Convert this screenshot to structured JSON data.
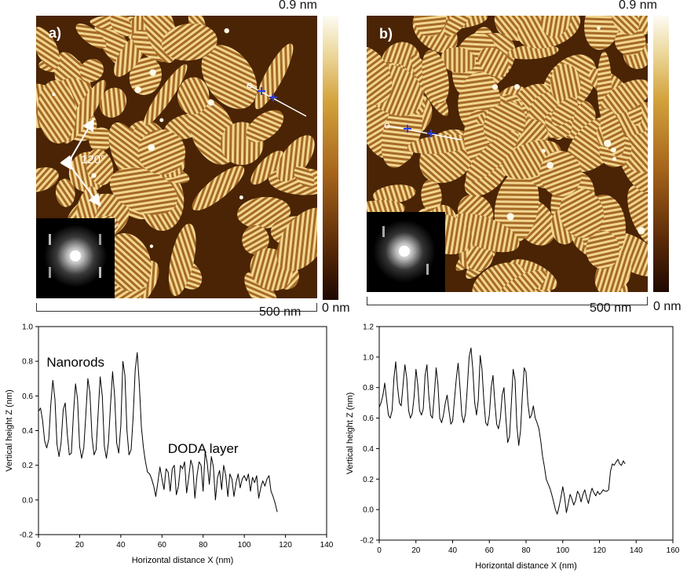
{
  "images": [
    {
      "panel_label": "a)",
      "colorbar_max": "0.9 nm",
      "colorbar_min": "0 nm",
      "scale_label": "500 nm",
      "angle_label": "120°"
    },
    {
      "panel_label": "b)",
      "colorbar_max": "0.9 nm",
      "colorbar_min": "0 nm",
      "scale_label": "500 nm"
    }
  ],
  "colors": {
    "afm_dark": "#4a2405",
    "afm_light": "#f2d690",
    "profile_marker": "#2b3fe0",
    "line": "#000000"
  },
  "chart_data": [
    {
      "type": "line",
      "title": "",
      "xlabel": "Horizontal distance X (nm)",
      "ylabel": "Vertical height Z (nm)",
      "xlim": [
        0,
        140
      ],
      "ylim": [
        -0.2,
        1.0
      ],
      "xticks": [
        0,
        20,
        40,
        60,
        80,
        100,
        120,
        140
      ],
      "yticks": [
        -0.2,
        0.0,
        0.2,
        0.4,
        0.6,
        0.8,
        1.0
      ],
      "annotations": [
        {
          "text": "Nanorods",
          "x": 18,
          "y": 0.77
        },
        {
          "text": "DODA layer",
          "x": 80,
          "y": 0.27
        }
      ],
      "series": [
        {
          "x": [
            0,
            1,
            2,
            3,
            4,
            5,
            6,
            7,
            8,
            9,
            10,
            11,
            12,
            13,
            14,
            15,
            16,
            17,
            18,
            19,
            20,
            21,
            22,
            23,
            24,
            25,
            26,
            27,
            28,
            29,
            30,
            31,
            32,
            33,
            34,
            35,
            36,
            37,
            38,
            39,
            40,
            41,
            42,
            43,
            44,
            45,
            46,
            47,
            48,
            49,
            50,
            51,
            52,
            53,
            54,
            55,
            56,
            57,
            58,
            59,
            60,
            61,
            62,
            63,
            64,
            65,
            66,
            67,
            68,
            69,
            70,
            71,
            72,
            73,
            74,
            75,
            76,
            77,
            78,
            79,
            80,
            81,
            82,
            83,
            84,
            85,
            86,
            87,
            88,
            89,
            90,
            91,
            92,
            93,
            94,
            95,
            96,
            97,
            98,
            99,
            100,
            101,
            102,
            103,
            104,
            105,
            106,
            107,
            108,
            109,
            110,
            111,
            112,
            113,
            114,
            115,
            116
          ],
          "y": [
            0.51,
            0.53,
            0.46,
            0.34,
            0.3,
            0.35,
            0.55,
            0.69,
            0.58,
            0.32,
            0.25,
            0.33,
            0.52,
            0.56,
            0.38,
            0.26,
            0.27,
            0.5,
            0.67,
            0.58,
            0.31,
            0.24,
            0.3,
            0.49,
            0.7,
            0.62,
            0.36,
            0.26,
            0.29,
            0.5,
            0.71,
            0.6,
            0.31,
            0.24,
            0.33,
            0.55,
            0.74,
            0.6,
            0.33,
            0.27,
            0.43,
            0.8,
            0.72,
            0.4,
            0.26,
            0.29,
            0.48,
            0.75,
            0.85,
            0.67,
            0.42,
            0.3,
            0.22,
            0.16,
            0.15,
            0.12,
            0.08,
            0.02,
            0.1,
            0.19,
            0.12,
            0.06,
            0.18,
            0.16,
            0.05,
            0.18,
            0.2,
            0.03,
            0.08,
            0.2,
            0.18,
            0.22,
            0.04,
            0.13,
            0.23,
            0.19,
            0.01,
            0.14,
            0.22,
            0.2,
            0.05,
            0.28,
            0.21,
            0.09,
            0.25,
            0.19,
            0.0,
            0.13,
            0.17,
            0.06,
            0.2,
            0.14,
            0.02,
            0.15,
            0.12,
            0.02,
            0.1,
            0.15,
            0.07,
            0.12,
            0.14,
            0.11,
            0.15,
            0.05,
            0.13,
            0.1,
            0.14,
            0.01,
            0.07,
            0.11,
            0.08,
            0.12,
            0.14,
            0.05,
            0.02,
            -0.02,
            -0.07
          ]
        }
      ]
    },
    {
      "type": "line",
      "title": "",
      "xlabel": "Horizontal distance X (nm)",
      "ylabel": "Vertical height Z (nm)",
      "xlim": [
        0,
        160
      ],
      "ylim": [
        -0.2,
        1.2
      ],
      "xticks": [
        0,
        20,
        40,
        60,
        80,
        100,
        120,
        140,
        160
      ],
      "yticks": [
        -0.2,
        0.0,
        0.2,
        0.4,
        0.6,
        0.8,
        1.0,
        1.2
      ],
      "series": [
        {
          "x": [
            0,
            1,
            2,
            3,
            4,
            5,
            6,
            7,
            8,
            9,
            10,
            11,
            12,
            13,
            14,
            15,
            16,
            17,
            18,
            19,
            20,
            21,
            22,
            23,
            24,
            25,
            26,
            27,
            28,
            29,
            30,
            31,
            32,
            33,
            34,
            35,
            36,
            37,
            38,
            39,
            40,
            41,
            42,
            43,
            44,
            45,
            46,
            47,
            48,
            49,
            50,
            51,
            52,
            53,
            54,
            55,
            56,
            57,
            58,
            59,
            60,
            61,
            62,
            63,
            64,
            65,
            66,
            67,
            68,
            69,
            70,
            71,
            72,
            73,
            74,
            75,
            76,
            77,
            78,
            79,
            80,
            81,
            82,
            83,
            84,
            85,
            86,
            87,
            88,
            89,
            90,
            91,
            92,
            93,
            94,
            95,
            96,
            97,
            98,
            99,
            100,
            101,
            102,
            103,
            104,
            105,
            106,
            107,
            108,
            109,
            110,
            111,
            112,
            113,
            114,
            115,
            116,
            117,
            118,
            119,
            120,
            121,
            122,
            123,
            124,
            125,
            126,
            127,
            128,
            129,
            130,
            131,
            132,
            133,
            134
          ],
          "y": [
            0.67,
            0.7,
            0.75,
            0.83,
            0.72,
            0.62,
            0.6,
            0.65,
            0.86,
            0.97,
            0.8,
            0.7,
            0.68,
            0.82,
            0.95,
            0.86,
            0.65,
            0.6,
            0.63,
            0.74,
            0.92,
            0.82,
            0.65,
            0.62,
            0.66,
            0.88,
            0.95,
            0.75,
            0.62,
            0.6,
            0.75,
            0.93,
            0.82,
            0.6,
            0.57,
            0.62,
            0.7,
            0.75,
            0.65,
            0.56,
            0.58,
            0.72,
            0.86,
            0.96,
            0.8,
            0.62,
            0.57,
            0.63,
            0.8,
            1.0,
            1.06,
            0.92,
            0.7,
            0.62,
            0.72,
            1.01,
            0.92,
            0.72,
            0.57,
            0.55,
            0.62,
            0.8,
            0.88,
            0.7,
            0.56,
            0.53,
            0.6,
            0.75,
            0.8,
            0.6,
            0.44,
            0.48,
            0.7,
            0.92,
            0.85,
            0.55,
            0.42,
            0.52,
            0.75,
            0.93,
            0.9,
            0.7,
            0.6,
            0.62,
            0.68,
            0.6,
            0.57,
            0.53,
            0.45,
            0.35,
            0.28,
            0.2,
            0.17,
            0.14,
            0.1,
            0.05,
            0.0,
            -0.03,
            0.02,
            0.08,
            0.15,
            0.08,
            -0.02,
            0.04,
            0.1,
            0.07,
            0.03,
            0.06,
            0.12,
            0.1,
            0.05,
            0.1,
            0.13,
            0.08,
            0.04,
            0.1,
            0.14,
            0.11,
            0.09,
            0.12,
            0.1,
            0.11,
            0.13,
            0.12,
            0.12,
            0.13,
            0.25,
            0.3,
            0.29,
            0.31,
            0.33,
            0.3,
            0.29,
            0.32,
            0.3
          ]
        }
      ]
    }
  ]
}
